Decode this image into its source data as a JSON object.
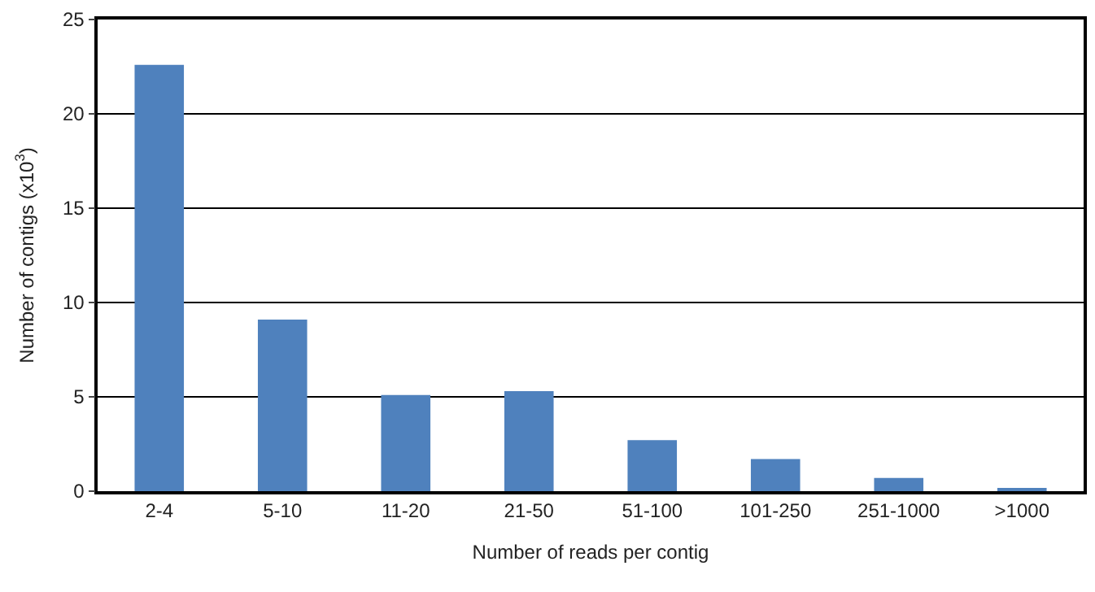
{
  "chart_data": {
    "type": "bar",
    "xlabel": "Number of reads per contig",
    "ylabel": "Number of contigs (x10$^{3}$)",
    "categories": [
      "2-4",
      "5-10",
      "11-20",
      "21-50",
      "51-100",
      "101-250",
      "251-1000",
      ">1000"
    ],
    "values": [
      22.6,
      9.1,
      5.1,
      5.3,
      2.7,
      1.7,
      0.7,
      0.1
    ],
    "color": "#4f81bd",
    "ylim": [
      0,
      25
    ],
    "yticks": [
      0,
      5,
      10,
      15,
      20,
      25
    ],
    "grid": "y"
  }
}
